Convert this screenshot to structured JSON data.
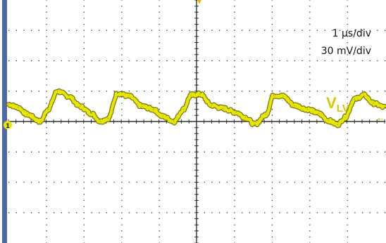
{
  "scale": {
    "time_per_div": "1 µs/div",
    "volts_per_div": "30 mV/div"
  },
  "channel": {
    "label_main": "V",
    "label_sub": "LV",
    "marker": "1",
    "color": "#e6e600",
    "edge_color": "#6e6e10"
  },
  "colors": {
    "left_bar": "#4e67a8",
    "grid_dot": "#333333",
    "trigger_marker": "#f2b600"
  },
  "chart_data": {
    "type": "line",
    "title": "",
    "xlabel": "",
    "ylabel": "",
    "x_unit": "µs",
    "y_unit": "mV",
    "xlim": [
      0,
      10
    ],
    "ylim": [
      -120,
      120
    ],
    "grid": true,
    "series": [
      {
        "name": "",
        "x": [
          0,
          0.25,
          0.5,
          0.85,
          1.05,
          1.3,
          1.6,
          1.9,
          2.2,
          2.45,
          2.65,
          2.9,
          3.2,
          3.55,
          3.85,
          4.1,
          4.4,
          4.65,
          4.85,
          5.1,
          5.4,
          5.7,
          6.05,
          6.3,
          6.55,
          6.85,
          7.05,
          7.3,
          7.6,
          7.95,
          8.25,
          8.5,
          8.75,
          8.95,
          9.2,
          9.45,
          9.7,
          10
        ],
        "y": [
          17,
          14,
          7,
          0,
          12,
          30,
          25,
          15,
          8,
          0,
          3,
          28,
          25,
          15,
          12,
          5,
          0,
          12,
          26,
          27,
          16,
          13,
          9,
          4,
          -3,
          7,
          26,
          25,
          16,
          12,
          8,
          1,
          -3,
          4,
          22,
          26,
          18,
          14
        ]
      }
    ]
  }
}
